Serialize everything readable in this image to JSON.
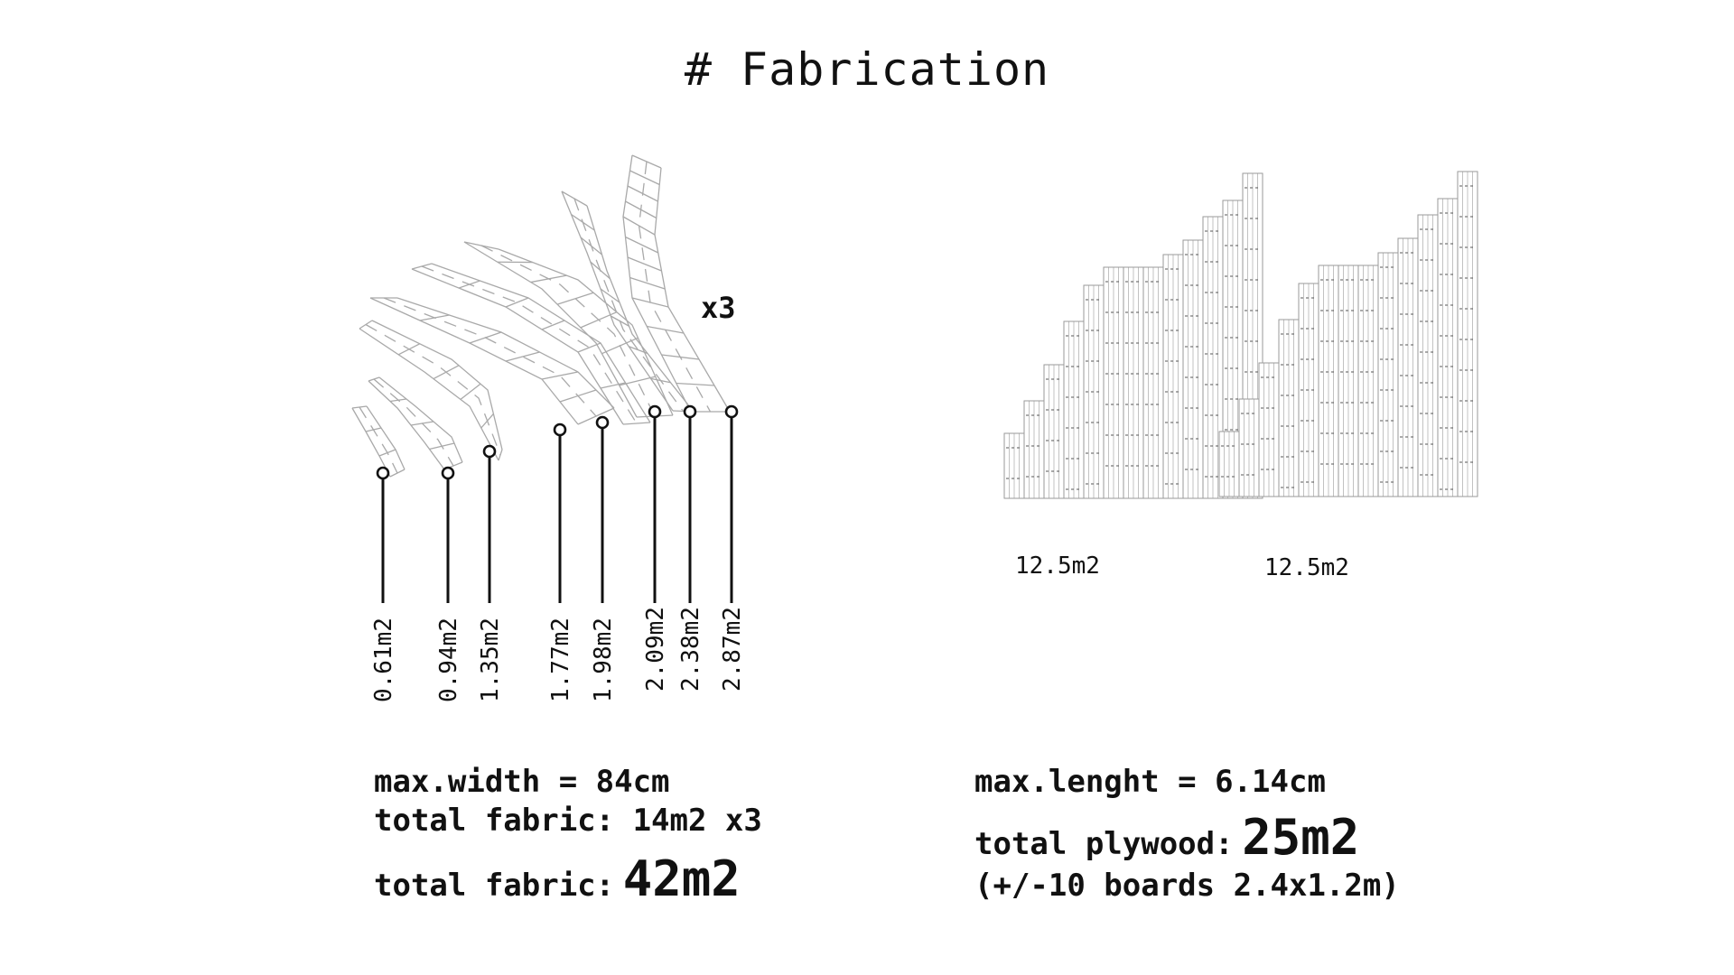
{
  "title": "# Fabrication",
  "fabric": {
    "multiplier": "x3",
    "pieces": [
      "0.61m2",
      "0.94m2",
      "1.35m2",
      "1.77m2",
      "1.98m2",
      "2.09m2",
      "2.38m2",
      "2.87m2"
    ],
    "max_width": "max.width = 84cm",
    "total_line": "total fabric: 14m2 x3",
    "total_label": "total fabric:",
    "total_value": "42m2"
  },
  "plywood": {
    "panels": [
      "12.5m2",
      "12.5m2"
    ],
    "max_length": "max.lenght = 6.14cm",
    "total_label": "total plywood:",
    "total_value": "25m2",
    "boards_note": "(+/-10 boards 2.4x1.2m)"
  },
  "colors": {
    "line": "#111111",
    "mesh": "#a9a9a9",
    "text": "#111111"
  }
}
